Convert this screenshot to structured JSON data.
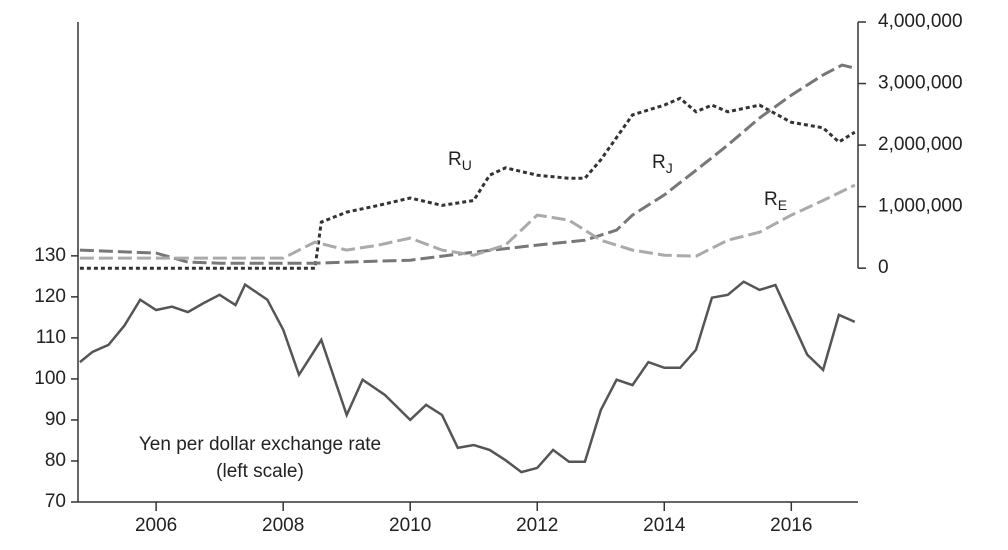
{
  "chart_data": {
    "type": "line",
    "xlim": [
      2004.77,
      2017.05
    ],
    "xticks": [
      2006,
      2008,
      2010,
      2012,
      2014,
      2016
    ],
    "ylim": [
      70,
      187
    ],
    "yticks": [
      70,
      80,
      90,
      100,
      110,
      120,
      130
    ],
    "y2lim": [
      -3800000,
      4000000
    ],
    "y2ticks": [
      0,
      {
        "value": 1000000,
        "label": "1,000,000"
      },
      {
        "value": 2000000,
        "label": "2,000,000"
      },
      {
        "value": 3000000,
        "label": "3,000,000"
      },
      {
        "value": 4000000,
        "label": "4,000,000"
      }
    ],
    "annotations": [
      "Yen per dollar exchange rate",
      "(left scale)"
    ],
    "series": [
      {
        "name": "Yen",
        "color": "#555555",
        "style": "solid",
        "x": [
          2004.8,
          2005.0,
          2005.25,
          2005.5,
          2005.75,
          2006.0,
          2006.25,
          2006.5,
          2006.75,
          2007.0,
          2007.25,
          2007.4,
          2007.75,
          2008.0,
          2008.25,
          2008.6,
          2009.0,
          2009.25,
          2009.6,
          2010.0,
          2010.25,
          2010.5,
          2010.75,
          2011.0,
          2011.25,
          2011.5,
          2011.75,
          2012.0,
          2012.25,
          2012.5,
          2012.75,
          2013.0,
          2013.25,
          2013.5,
          2013.75,
          2014.0,
          2014.25,
          2014.5,
          2014.75,
          2015.0,
          2015.25,
          2015.5,
          2015.75,
          2016.0,
          2016.25,
          2016.5,
          2016.75,
          2017.0
        ],
        "values": [
          104.1,
          106.6,
          108.3,
          113,
          119.3,
          116.8,
          117.6,
          116.3,
          118.5,
          120.5,
          118,
          123,
          119.3,
          112,
          101,
          109.5,
          91.2,
          99.8,
          96.1,
          90,
          93.7,
          91.2,
          83.2,
          83.9,
          82.7,
          80.2,
          77.3,
          78.3,
          82.7,
          79.8,
          79.8,
          92.4,
          99.8,
          98.5,
          104.1,
          102.7,
          102.7,
          107.1,
          119.8,
          120.5,
          123.7,
          121.7,
          122.9,
          114.4,
          105.9,
          102.2,
          115.6,
          113.9
        ]
      },
      {
        "name": "RU",
        "color": "#333333",
        "style": "dotted",
        "axis": "y2",
        "x": [
          2004.8,
          2006.0,
          2007.0,
          2008.0,
          2008.5,
          2008.6,
          2009.0,
          2009.5,
          2010.0,
          2010.5,
          2011.0,
          2011.25,
          2011.5,
          2012.0,
          2012.5,
          2012.75,
          2013.0,
          2013.5,
          2014.0,
          2014.25,
          2014.5,
          2014.75,
          2015.0,
          2015.5,
          2016.0,
          2016.5,
          2016.75,
          2017.0
        ],
        "values": [
          0,
          0,
          0,
          0,
          0,
          748000,
          911000,
          1020000,
          1140000,
          1020000,
          1100000,
          1510000,
          1630000,
          1510000,
          1460000,
          1460000,
          1760000,
          2490000,
          2650000,
          2760000,
          2540000,
          2650000,
          2540000,
          2650000,
          2370000,
          2280000,
          2050000,
          2210000
        ]
      },
      {
        "name": "RJ",
        "color": "#777777",
        "style": "dashed",
        "axis": "y2",
        "x": [
          2004.8,
          2006.0,
          2006.5,
          2007.0,
          2008.5,
          2009.0,
          2010.0,
          2011.0,
          2012.0,
          2012.75,
          2013.25,
          2013.5,
          2014.0,
          2014.5,
          2015.0,
          2015.5,
          2016.0,
          2016.5,
          2016.8,
          2017.0
        ],
        "values": [
          293000,
          244000,
          98000,
          81000,
          81000,
          98000,
          130000,
          260000,
          374000,
          455000,
          618000,
          862000,
          1190000,
          1590000,
          2000000,
          2440000,
          2810000,
          3140000,
          3300000,
          3250000
        ]
      },
      {
        "name": "RE",
        "color": "#aaaaaa",
        "style": "dashed",
        "axis": "y2",
        "x": [
          2004.8,
          2008.0,
          2008.5,
          2009.0,
          2009.5,
          2010.0,
          2010.5,
          2011.0,
          2011.5,
          2012.0,
          2012.5,
          2013.0,
          2013.5,
          2014.0,
          2014.5,
          2015.0,
          2015.5,
          2016.0,
          2016.5,
          2017.0
        ],
        "values": [
          163000,
          163000,
          423000,
          293000,
          374000,
          488000,
          293000,
          211000,
          374000,
          862000,
          780000,
          455000,
          293000,
          211000,
          195000,
          455000,
          585000,
          862000,
          1100000,
          1350000
        ]
      }
    ]
  }
}
